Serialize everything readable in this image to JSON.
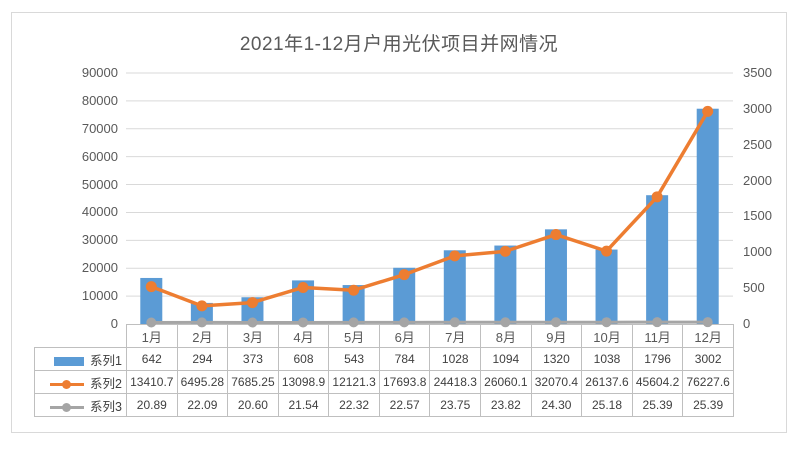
{
  "chart_data": {
    "type": "combo-bar-line",
    "title": "2021年1-12月户用光伏项目并网情况",
    "categories": [
      "1月",
      "2月",
      "3月",
      "4月",
      "5月",
      "6月",
      "7月",
      "8月",
      "9月",
      "10月",
      "11月",
      "12月"
    ],
    "series": [
      {
        "name": "系列1",
        "type": "bar",
        "axis": "right",
        "color": "#5B9BD5",
        "values": [
          642,
          294,
          373,
          608,
          543,
          784,
          1028,
          1094,
          1320,
          1038,
          1796,
          3002
        ],
        "labels": [
          "642",
          "294",
          "373",
          "608",
          "543",
          "784",
          "1028",
          "1094",
          "1320",
          "1038",
          "1796",
          "3002"
        ]
      },
      {
        "name": "系列2",
        "type": "line",
        "axis": "left",
        "color": "#ED7D31",
        "values": [
          13410.7,
          6495.28,
          7685.25,
          13098.9,
          12121.3,
          17693.8,
          24418.3,
          26060.1,
          32070.4,
          26137.6,
          45604.2,
          76227.6
        ],
        "labels": [
          "13410.7",
          "6495.28",
          "7685.25",
          "13098.9",
          "12121.3",
          "17693.8",
          "24418.3",
          "26060.1",
          "32070.4",
          "26137.6",
          "45604.2",
          "76227.6"
        ]
      },
      {
        "name": "系列3",
        "type": "line",
        "axis": "right",
        "color": "#A5A5A5",
        "values": [
          20.89,
          22.09,
          20.6,
          21.54,
          22.32,
          22.57,
          23.75,
          23.82,
          24.3,
          25.18,
          25.39,
          25.39
        ],
        "labels": [
          "20.89",
          "22.09",
          "20.60",
          "21.54",
          "22.32",
          "22.57",
          "23.75",
          "23.82",
          "24.30",
          "25.18",
          "25.39",
          "25.39"
        ]
      }
    ],
    "axes": {
      "left": {
        "min": 0,
        "max": 90000,
        "step": 10000,
        "ticks": [
          "0",
          "10000",
          "20000",
          "30000",
          "40000",
          "50000",
          "60000",
          "70000",
          "80000",
          "90000"
        ]
      },
      "right": {
        "min": 0,
        "max": 3500,
        "step": 500,
        "ticks": [
          "0",
          "500",
          "1000",
          "1500",
          "2000",
          "2500",
          "3000",
          "3500"
        ]
      }
    },
    "grid": true,
    "legend_position": "data-table-left",
    "colors": {
      "grid": "#D9D9D9",
      "table_border": "#BFBFBF",
      "axis_text": "#595959",
      "value_text": "#404040",
      "frame_border": "#D9D9D9"
    }
  }
}
